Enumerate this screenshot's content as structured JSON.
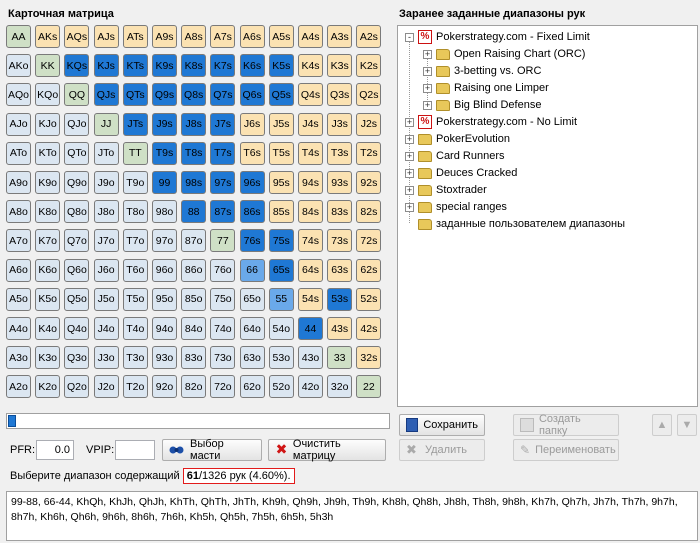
{
  "left_title": "Карточная матрица",
  "right_title": "Заранее заданные диапазоны рук",
  "matrix": [
    [
      "AA",
      "AKs",
      "AQs",
      "AJs",
      "ATs",
      "A9s",
      "A8s",
      "A7s",
      "A6s",
      "A5s",
      "A4s",
      "A3s",
      "A2s"
    ],
    [
      "AKo",
      "KK",
      "KQs",
      "KJs",
      "KTs",
      "K9s",
      "K8s",
      "K7s",
      "K6s",
      "K5s",
      "K4s",
      "K3s",
      "K2s"
    ],
    [
      "AQo",
      "KQo",
      "QQ",
      "QJs",
      "QTs",
      "Q9s",
      "Q8s",
      "Q7s",
      "Q6s",
      "Q5s",
      "Q4s",
      "Q3s",
      "Q2s"
    ],
    [
      "AJo",
      "KJo",
      "QJo",
      "JJ",
      "JTs",
      "J9s",
      "J8s",
      "J7s",
      "J6s",
      "J5s",
      "J4s",
      "J3s",
      "J2s"
    ],
    [
      "ATo",
      "KTo",
      "QTo",
      "JTo",
      "TT",
      "T9s",
      "T8s",
      "T7s",
      "T6s",
      "T5s",
      "T4s",
      "T3s",
      "T2s"
    ],
    [
      "A9o",
      "K9o",
      "Q9o",
      "J9o",
      "T9o",
      "99",
      "98s",
      "97s",
      "96s",
      "95s",
      "94s",
      "93s",
      "92s"
    ],
    [
      "A8o",
      "K8o",
      "Q8o",
      "J8o",
      "T8o",
      "98o",
      "88",
      "87s",
      "86s",
      "85s",
      "84s",
      "83s",
      "82s"
    ],
    [
      "A7o",
      "K7o",
      "Q7o",
      "J7o",
      "T7o",
      "97o",
      "87o",
      "77",
      "76s",
      "75s",
      "74s",
      "73s",
      "72s"
    ],
    [
      "A6o",
      "K6o",
      "Q6o",
      "J6o",
      "T6o",
      "96o",
      "86o",
      "76o",
      "66",
      "65s",
      "64s",
      "63s",
      "62s"
    ],
    [
      "A5o",
      "K5o",
      "Q5o",
      "J5o",
      "T5o",
      "95o",
      "85o",
      "75o",
      "65o",
      "55",
      "54s",
      "53s",
      "52s"
    ],
    [
      "A4o",
      "K4o",
      "Q4o",
      "J4o",
      "T4o",
      "94o",
      "84o",
      "74o",
      "64o",
      "54o",
      "44",
      "43s",
      "42s"
    ],
    [
      "A3o",
      "K3o",
      "Q3o",
      "J3o",
      "T3o",
      "93o",
      "83o",
      "73o",
      "63o",
      "53o",
      "43o",
      "33",
      "32s"
    ],
    [
      "A2o",
      "K2o",
      "Q2o",
      "J2o",
      "T2o",
      "92o",
      "82o",
      "72o",
      "62o",
      "52o",
      "42o",
      "32o",
      "22"
    ]
  ],
  "selected": [
    "KQs",
    "KJs",
    "KTs",
    "K9s",
    "K8s",
    "K7s",
    "K6s",
    "K5s",
    "QJs",
    "QTs",
    "Q9s",
    "Q8s",
    "Q7s",
    "Q6s",
    "Q5s",
    "JTs",
    "J9s",
    "J8s",
    "J7s",
    "T9s",
    "T8s",
    "T7s",
    "99",
    "98s",
    "97s",
    "96s",
    "88",
    "87s",
    "86s",
    "76s",
    "75s",
    "65s",
    "53s",
    "44"
  ],
  "selected_light": [
    "66",
    "55"
  ],
  "tree": [
    {
      "label": "Pokerstrategy.com - Fixed Limit",
      "type": "pct",
      "level": 0,
      "expander": "-"
    },
    {
      "label": "Open Raising Chart (ORC)",
      "type": "folder",
      "level": 1,
      "expander": "+"
    },
    {
      "label": "3-betting vs. ORC",
      "type": "folder",
      "level": 1,
      "expander": "+"
    },
    {
      "label": "Raising one Limper",
      "type": "folder",
      "level": 1,
      "expander": "+"
    },
    {
      "label": "Big Blind Defense",
      "type": "folder",
      "level": 1,
      "expander": "+"
    },
    {
      "label": "Pokerstrategy.com - No Limit",
      "type": "pct",
      "level": 0,
      "expander": "+"
    },
    {
      "label": "PokerEvolution",
      "type": "folder",
      "level": 0,
      "expander": "+"
    },
    {
      "label": "Card Runners",
      "type": "folder",
      "level": 0,
      "expander": "+"
    },
    {
      "label": "Deuces Cracked",
      "type": "folder",
      "level": 0,
      "expander": "+"
    },
    {
      "label": "Stoxtrader",
      "type": "folder",
      "level": 0,
      "expander": "+"
    },
    {
      "label": "special ranges",
      "type": "folder",
      "level": 0,
      "expander": "+"
    },
    {
      "label": "заданные пользователем диапазоны",
      "type": "folder",
      "level": 0,
      "expander": ""
    }
  ],
  "buttons": {
    "save": "Сохранить",
    "delete": "Удалить",
    "create_folder": "Создать папку",
    "rename": "Переименовать",
    "suit_select": "Выбор масти",
    "clear_matrix": "Очистить матрицу"
  },
  "pfr_label": "PFR:",
  "pfr_value": "0.0",
  "vpip_label": "VPIP:",
  "vpip_value": "",
  "slider_value": 0.0,
  "summary_prefix": "Выберите диапазон содержащий",
  "summary_count": "61",
  "summary_rest": "/1326 рук (4.60%).",
  "range_text": "99-88, 66-44, KhQh, KhJh, QhJh, KhTh, QhTh, JhTh, Kh9h, Qh9h, Jh9h, Th9h, Kh8h, Qh8h, Jh8h, Th8h, 9h8h, Kh7h, Qh7h, Jh7h, Th7h, 9h7h, 8h7h, Kh6h, Qh6h, 9h6h, 8h6h, 7h6h, Kh5h, Qh5h, 7h5h, 6h5h, 5h3h"
}
